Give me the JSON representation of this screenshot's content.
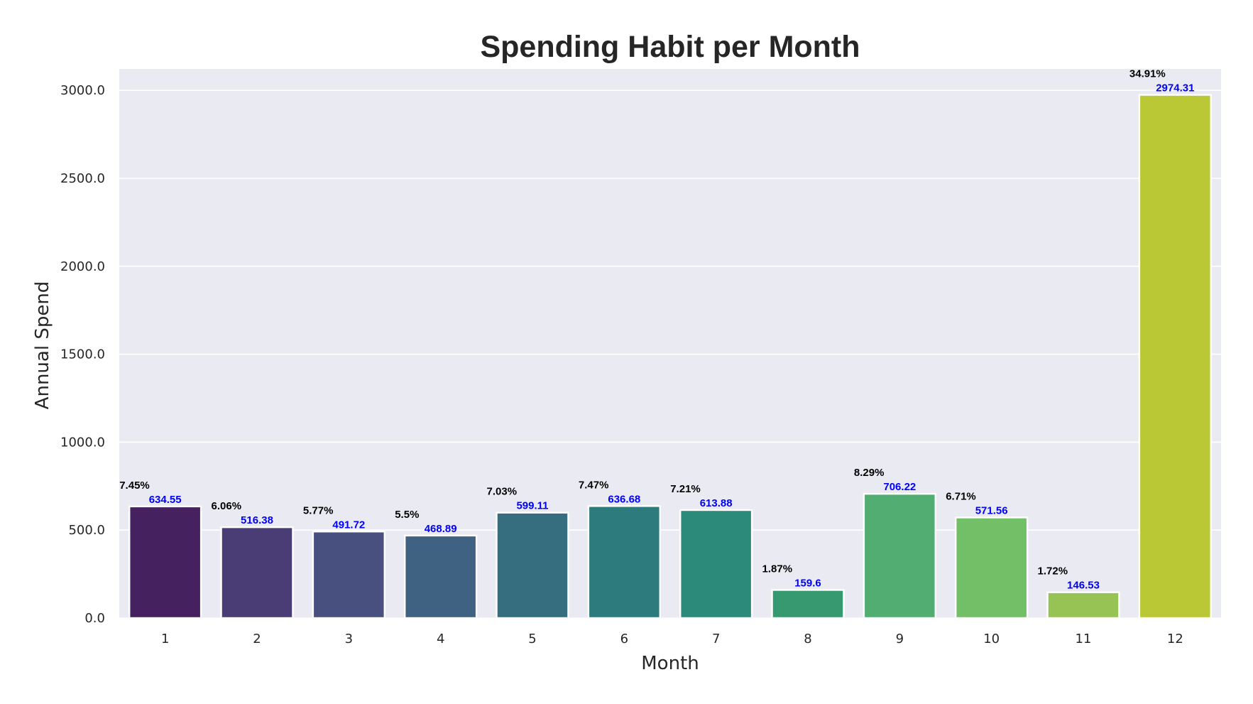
{
  "chart_data": {
    "type": "bar",
    "title": "Spending Habit per Month",
    "xlabel": "Month",
    "ylabel": "Annual Spend",
    "categories": [
      "1",
      "2",
      "3",
      "4",
      "5",
      "6",
      "7",
      "8",
      "9",
      "10",
      "11",
      "12"
    ],
    "values": [
      634.55,
      516.38,
      491.72,
      468.89,
      599.11,
      636.68,
      613.88,
      159.6,
      706.22,
      571.56,
      146.53,
      2974.31
    ],
    "percent_labels": [
      "7.45%",
      "6.06%",
      "5.77%",
      "5.5%",
      "7.03%",
      "7.47%",
      "7.21%",
      "1.87%",
      "8.29%",
      "6.71%",
      "1.72%",
      "34.91%"
    ],
    "value_labels": [
      "634.55",
      "516.38",
      "491.72",
      "468.89",
      "599.11",
      "636.68",
      "613.88",
      "159.6",
      "706.22",
      "571.56",
      "146.53",
      "2974.31"
    ],
    "yticks": [
      "0.0",
      "500.0",
      "1000.0",
      "1500.0",
      "2000.0",
      "2500.0",
      "3000.0"
    ],
    "ylim": [
      0,
      3122
    ],
    "grid": true,
    "colors": [
      "#46215f",
      "#4a3d75",
      "#47507e",
      "#3f6282",
      "#366e80",
      "#2e7b7d",
      "#2b8a7a",
      "#36996f",
      "#52ad72",
      "#73bf67",
      "#97c254",
      "#b9c834"
    ],
    "background": "#eaeaf2",
    "percent_color": "#000000",
    "value_color": "#0000ff"
  }
}
